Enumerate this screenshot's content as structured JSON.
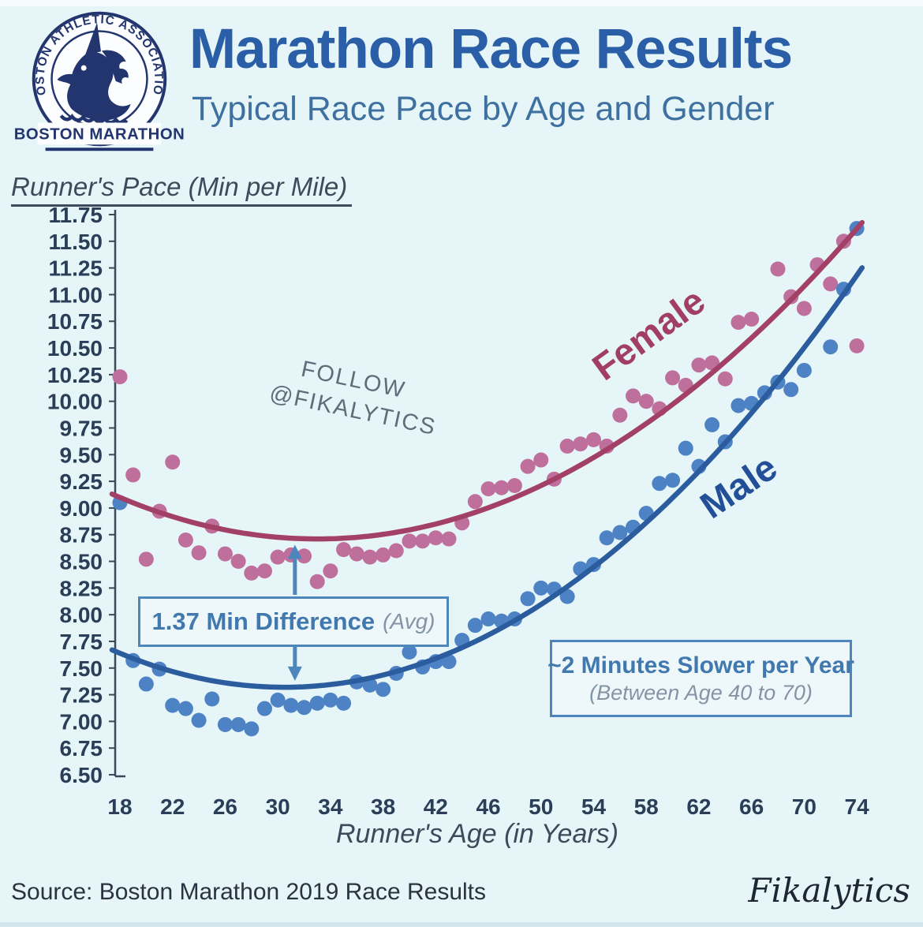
{
  "header": {
    "title": "Marathon Race Results",
    "subtitle": "Typical Race Pace by Age and Gender",
    "logo": {
      "arc_text": "BOSTON ATHLETIC ASSOCIATION",
      "name": "BOSTON MARATHON"
    }
  },
  "footer": {
    "source": "Source: Boston Marathon 2019 Race Results",
    "brand": "Fikalytics"
  },
  "colors": {
    "background": "#e6f5f8",
    "title_blue": "#2a5ea6",
    "subtitle_blue": "#3e719f",
    "axis_text": "#2b3e58",
    "annotation_blue": "#4d86bd",
    "female_marker": "#bf6f9b",
    "female_line": "#a34067",
    "male_marker": "#4d82c4",
    "male_line": "#2b5c9e",
    "logo_navy": "#23356e"
  },
  "chart_data": {
    "type": "scatter",
    "title": "Marathon Race Results",
    "subtitle": "Typical Race Pace by Age and Gender",
    "xlabel": "Runner's Age (in Years)",
    "ylabel": "Runner's Pace (Min per Mile)",
    "xlim": [
      17.3,
      75.5
    ],
    "ylim": [
      6.5,
      11.75
    ],
    "y_tick_step": 0.25,
    "x_ticks": [
      18,
      22,
      26,
      30,
      34,
      38,
      42,
      46,
      50,
      54,
      58,
      62,
      66,
      70,
      74
    ],
    "grid": false,
    "legend_position": "labels-on-curves",
    "series": [
      {
        "name": "Female",
        "marker_color": "#bf6f9b",
        "trend_color": "#a34067",
        "trend": {
          "vertex_age": 33,
          "min_pace": 8.71,
          "curvature": 0.00173,
          "age_start": 17.4,
          "age_end": 74.8
        },
        "points": [
          [
            18,
            10.23
          ],
          [
            19,
            9.31
          ],
          [
            20,
            8.52
          ],
          [
            21,
            8.97
          ],
          [
            22,
            9.43
          ],
          [
            23,
            8.7
          ],
          [
            24,
            8.58
          ],
          [
            25,
            8.83
          ],
          [
            26,
            8.57
          ],
          [
            27,
            8.5
          ],
          [
            28,
            8.39
          ],
          [
            29,
            8.41
          ],
          [
            30,
            8.54
          ],
          [
            31,
            8.56
          ],
          [
            32,
            8.55
          ],
          [
            33,
            8.31
          ],
          [
            34,
            8.41
          ],
          [
            35,
            8.61
          ],
          [
            36,
            8.57
          ],
          [
            37,
            8.54
          ],
          [
            38,
            8.56
          ],
          [
            39,
            8.6
          ],
          [
            40,
            8.69
          ],
          [
            41,
            8.69
          ],
          [
            42,
            8.72
          ],
          [
            43,
            8.71
          ],
          [
            44,
            8.86
          ],
          [
            45,
            9.06
          ],
          [
            46,
            9.18
          ],
          [
            47,
            9.19
          ],
          [
            48,
            9.21
          ],
          [
            49,
            9.39
          ],
          [
            50,
            9.45
          ],
          [
            51,
            9.27
          ],
          [
            52,
            9.58
          ],
          [
            53,
            9.6
          ],
          [
            54,
            9.64
          ],
          [
            55,
            9.58
          ],
          [
            56,
            9.87
          ],
          [
            57,
            10.05
          ],
          [
            58,
            10.0
          ],
          [
            59,
            9.93
          ],
          [
            60,
            10.22
          ],
          [
            61,
            10.15
          ],
          [
            62,
            10.34
          ],
          [
            63,
            10.36
          ],
          [
            64,
            10.21
          ],
          [
            65,
            10.74
          ],
          [
            66,
            10.77
          ],
          [
            68,
            11.24
          ],
          [
            69,
            10.98
          ],
          [
            70,
            10.87
          ],
          [
            71,
            11.28
          ],
          [
            72,
            11.1
          ],
          [
            73,
            11.5
          ],
          [
            74,
            10.52
          ]
        ]
      },
      {
        "name": "Male",
        "marker_color": "#4d82c4",
        "trend_color": "#2b5c9e",
        "trend": {
          "vertex_age": 30.5,
          "min_pace": 7.32,
          "curvature": 0.00204,
          "age_start": 17.4,
          "age_end": 74.8
        },
        "points": [
          [
            18,
            9.05
          ],
          [
            19,
            7.57
          ],
          [
            20,
            7.35
          ],
          [
            21,
            7.49
          ],
          [
            22,
            7.15
          ],
          [
            23,
            7.12
          ],
          [
            24,
            7.01
          ],
          [
            25,
            7.21
          ],
          [
            26,
            6.97
          ],
          [
            27,
            6.97
          ],
          [
            28,
            6.93
          ],
          [
            29,
            7.12
          ],
          [
            30,
            7.2
          ],
          [
            31,
            7.15
          ],
          [
            32,
            7.13
          ],
          [
            33,
            7.17
          ],
          [
            34,
            7.2
          ],
          [
            35,
            7.17
          ],
          [
            36,
            7.37
          ],
          [
            37,
            7.34
          ],
          [
            38,
            7.3
          ],
          [
            39,
            7.45
          ],
          [
            40,
            7.65
          ],
          [
            41,
            7.51
          ],
          [
            42,
            7.56
          ],
          [
            43,
            7.56
          ],
          [
            44,
            7.76
          ],
          [
            45,
            7.9
          ],
          [
            46,
            7.96
          ],
          [
            47,
            7.94
          ],
          [
            48,
            7.96
          ],
          [
            49,
            8.15
          ],
          [
            50,
            8.25
          ],
          [
            51,
            8.24
          ],
          [
            52,
            8.17
          ],
          [
            53,
            8.43
          ],
          [
            54,
            8.47
          ],
          [
            55,
            8.72
          ],
          [
            56,
            8.77
          ],
          [
            57,
            8.82
          ],
          [
            58,
            8.95
          ],
          [
            59,
            9.23
          ],
          [
            60,
            9.26
          ],
          [
            61,
            9.56
          ],
          [
            62,
            9.39
          ],
          [
            63,
            9.78
          ],
          [
            64,
            9.62
          ],
          [
            65,
            9.96
          ],
          [
            66,
            9.98
          ],
          [
            67,
            10.08
          ],
          [
            68,
            10.18
          ],
          [
            69,
            10.11
          ],
          [
            70,
            10.29
          ],
          [
            72,
            10.51
          ],
          [
            73,
            11.05
          ],
          [
            74,
            11.62
          ]
        ]
      }
    ],
    "annotations": {
      "difference": {
        "text": "1.37 Min Difference",
        "note": "(Avg)",
        "arrow_age": 31.3
      },
      "slower": {
        "text": "~2 Minutes Slower per Year",
        "note": "(Between Age 40 to 70)"
      },
      "watermark": {
        "line1": "FOLLOW",
        "line2": "@FIKALYTICS"
      },
      "series_labels": {
        "female": "Female",
        "male": "Male"
      }
    }
  }
}
